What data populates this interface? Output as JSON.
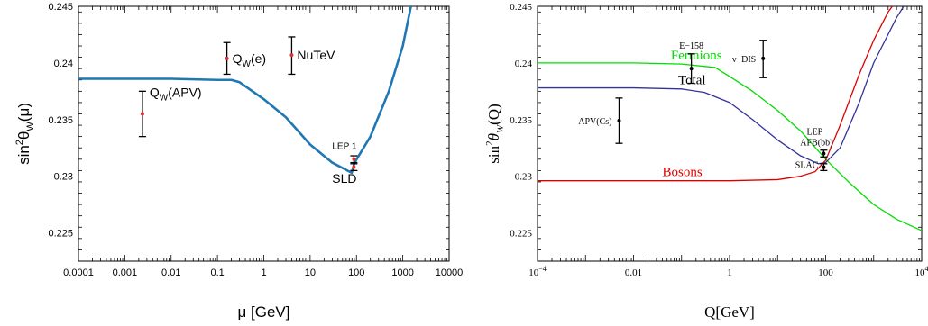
{
  "chart_data": [
    {
      "type": "line",
      "xlabel": "μ [GeV]",
      "ylabel_base": "sin",
      "ylabel_sup": "2",
      "ylabel_mid": "θ",
      "ylabel_sub": "W",
      "ylabel_tail": "(μ)",
      "xscale": "log",
      "xlim": [
        0.0001,
        10000
      ],
      "ylim": [
        0.2225,
        0.245
      ],
      "xticks": [
        {
          "v": 0.0001,
          "label": "0.0001"
        },
        {
          "v": 0.001,
          "label": "0.001"
        },
        {
          "v": 0.01,
          "label": "0.01"
        },
        {
          "v": 0.1,
          "label": "0.1"
        },
        {
          "v": 1,
          "label": "1"
        },
        {
          "v": 10,
          "label": "10"
        },
        {
          "v": 100,
          "label": "100"
        },
        {
          "v": 1000,
          "label": "1000"
        },
        {
          "v": 10000,
          "label": "10000"
        }
      ],
      "yticks": [
        {
          "v": 0.225,
          "label": "0.225"
        },
        {
          "v": 0.23,
          "label": "0.23"
        },
        {
          "v": 0.235,
          "label": "0.235"
        },
        {
          "v": 0.24,
          "label": "0.24"
        },
        {
          "v": 0.245,
          "label": "0.245"
        }
      ],
      "grid": false,
      "curve": {
        "x": [
          0.0001,
          0.001,
          0.01,
          0.1,
          0.2,
          0.3,
          1,
          3,
          10,
          30,
          79,
          91.2,
          200,
          500,
          1000,
          1500
        ],
        "y": [
          0.2386,
          0.2386,
          0.2386,
          0.2385,
          0.2385,
          0.2383,
          0.2368,
          0.2352,
          0.2328,
          0.2312,
          0.2303,
          0.2312,
          0.2335,
          0.2375,
          0.2415,
          0.245
        ]
      },
      "points": [
        {
          "label_main": "Q",
          "label_sub": "W",
          "label_tail": "(APV)",
          "x": 0.0024,
          "y": 0.2355,
          "lo": 0.2335,
          "hi": 0.2375,
          "label_pos": "right-top"
        },
        {
          "label_main": "Q",
          "label_sub": "W",
          "label_tail": "(e)",
          "x": 0.16,
          "y": 0.2404,
          "lo": 0.239,
          "hi": 0.2418,
          "label_pos": "right"
        },
        {
          "label_main": "NuTeV",
          "label_sub": "",
          "label_tail": "",
          "x": 4.0,
          "y": 0.2407,
          "lo": 0.239,
          "hi": 0.2423,
          "label_pos": "right"
        },
        {
          "label_main": "",
          "label_sub": "",
          "label_tail": "",
          "x": 88,
          "y": 0.2315,
          "lo": 0.2312,
          "hi": 0.2318,
          "label_pos": ""
        },
        {
          "label_main": "",
          "label_sub": "",
          "label_tail": "",
          "x": 88,
          "y": 0.2308,
          "lo": 0.2305,
          "hi": 0.2311,
          "label_pos": ""
        }
      ],
      "annotations": [
        {
          "text": "LEP 1",
          "x": 55,
          "y": 0.2324,
          "size": 10
        },
        {
          "text": "SLD",
          "x": 55,
          "y": 0.2294,
          "size": 14
        }
      ]
    },
    {
      "type": "line",
      "xlabel": "Q[GeV]",
      "ylabel_base": "sin",
      "ylabel_sup": "2",
      "ylabel_mid": "θ",
      "ylabel_sub": "W",
      "ylabel_tail": "(Q)",
      "xscale": "log",
      "xlim": [
        0.0001,
        10000
      ],
      "ylim": [
        0.2225,
        0.245
      ],
      "xticks": [
        {
          "v": 0.0001,
          "label": "10",
          "sup": "−4"
        },
        {
          "v": 0.01,
          "label": "0.01",
          "sup": ""
        },
        {
          "v": 1,
          "label": "1",
          "sup": ""
        },
        {
          "v": 100,
          "label": "100",
          "sup": ""
        },
        {
          "v": 10000,
          "label": "10",
          "sup": "4"
        }
      ],
      "yticks": [
        {
          "v": 0.225,
          "label": "0.225"
        },
        {
          "v": 0.23,
          "label": "0.23"
        },
        {
          "v": 0.235,
          "label": "0.235"
        },
        {
          "v": 0.24,
          "label": "0.24"
        },
        {
          "v": 0.245,
          "label": "0.245"
        }
      ],
      "grid": false,
      "series": [
        {
          "name": "Fermions",
          "color": "#00dd00",
          "x": [
            0.0001,
            0.01,
            0.1,
            0.5,
            1,
            3,
            10,
            30,
            100,
            300,
            1000,
            3000,
            10000
          ],
          "y": [
            0.24,
            0.24,
            0.2399,
            0.2396,
            0.2388,
            0.2375,
            0.2358,
            0.234,
            0.2315,
            0.2295,
            0.2275,
            0.2262,
            0.2252
          ]
        },
        {
          "name": "Total",
          "color": "#333399",
          "x": [
            0.0001,
            0.01,
            0.1,
            0.3,
            1,
            3,
            10,
            30,
            70,
            100,
            200,
            500,
            1000,
            3000,
            5000
          ],
          "y": [
            0.2378,
            0.2378,
            0.2377,
            0.2374,
            0.2365,
            0.235,
            0.2332,
            0.2318,
            0.2311,
            0.2312,
            0.2325,
            0.2365,
            0.24,
            0.244,
            0.2455
          ]
        },
        {
          "name": "Bosons",
          "color": "#dd0000",
          "x": [
            0.0001,
            0.01,
            1,
            10,
            30,
            60,
            100,
            200,
            500,
            1000,
            2000,
            3000
          ],
          "y": [
            0.2296,
            0.2296,
            0.2296,
            0.2297,
            0.23,
            0.2304,
            0.2314,
            0.2345,
            0.239,
            0.242,
            0.2445,
            0.2455
          ]
        }
      ],
      "points": [
        {
          "label": "APV(Cs)",
          "x": 0.005,
          "y": 0.2349,
          "lo": 0.2329,
          "hi": 0.2369,
          "label_pos": "left"
        },
        {
          "label": "E−158",
          "x": 0.16,
          "y": 0.2395,
          "lo": 0.2382,
          "hi": 0.2408,
          "label_pos": "top"
        },
        {
          "label": "ν−DIS",
          "x": 5.0,
          "y": 0.2404,
          "lo": 0.2387,
          "hi": 0.242,
          "label_pos": "left"
        },
        {
          "label": "LEP AFB(bb)",
          "x": 91.2,
          "y": 0.232,
          "lo": 0.2317,
          "hi": 0.2323,
          "label_pos": "top"
        },
        {
          "label": "SLAC",
          "x": 91.2,
          "y": 0.2308,
          "lo": 0.2305,
          "hi": 0.2311,
          "label_pos": "left"
        }
      ]
    }
  ]
}
